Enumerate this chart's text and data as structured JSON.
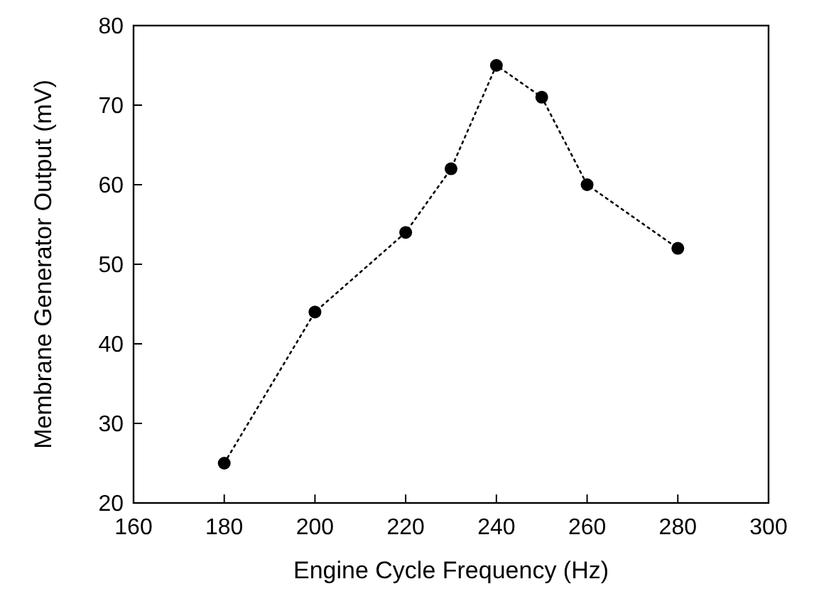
{
  "chart_data": {
    "type": "line",
    "xlabel": "Engine Cycle Frequency (Hz)",
    "ylabel": "Membrane Generator Output (mV)",
    "x": [
      180,
      200,
      220,
      230,
      240,
      250,
      260,
      280
    ],
    "series": [
      {
        "color": "#000000",
        "values": [
          25,
          44,
          54,
          62,
          75,
          71,
          60,
          52
        ]
      }
    ],
    "xlim": [
      160,
      300
    ],
    "xticks": [
      160,
      180,
      200,
      220,
      240,
      260,
      280,
      300
    ],
    "ylim": [
      20,
      80
    ],
    "yticks": [
      20,
      30,
      40,
      50,
      60,
      70,
      80
    ],
    "grid": false,
    "marker": "circle",
    "line_style": "dotted"
  }
}
